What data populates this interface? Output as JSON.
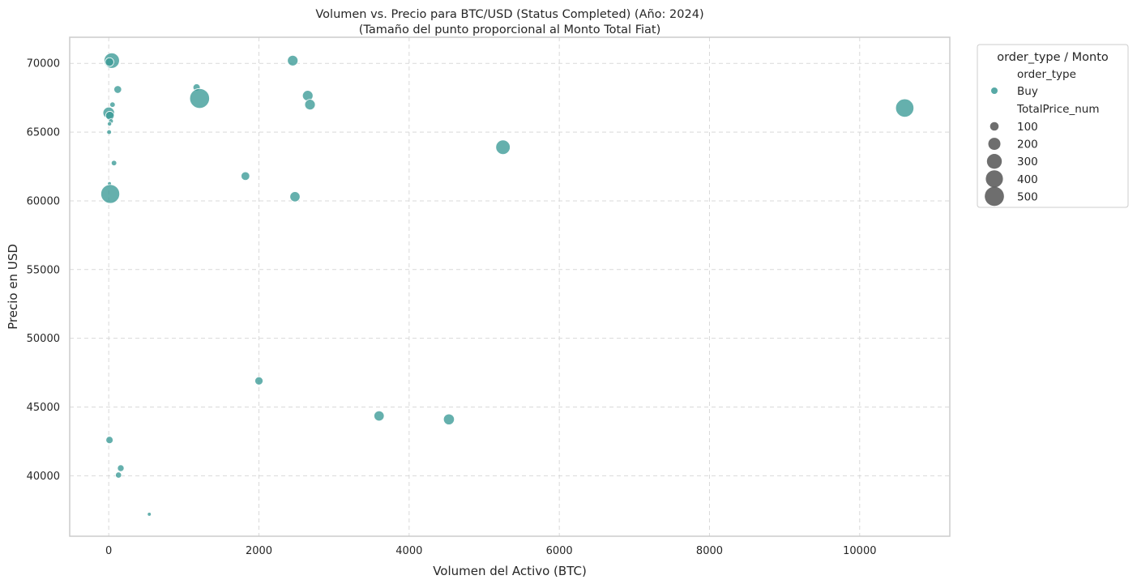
{
  "chart_data": {
    "type": "scatter",
    "title": "Volumen vs. Precio para BTC/USD (Status Completed) (Año: 2024)",
    "subtitle": "(Tamaño del punto proporcional al Monto Total Fiat)",
    "xlabel": "Volumen del Activo (BTC)",
    "ylabel": "Precio en USD",
    "xlim": [
      -520,
      11200
    ],
    "ylim": [
      35600,
      71900
    ],
    "xticks": [
      0,
      2000,
      4000,
      6000,
      8000,
      10000
    ],
    "yticks": [
      40000,
      45000,
      50000,
      55000,
      60000,
      65000,
      70000
    ],
    "grid": true,
    "legend": {
      "placement": "outside-top-right",
      "title": "order_type / Monto",
      "hue_title": "order_type",
      "hue_entries": [
        {
          "label": "Buy",
          "color": "#3a9a96"
        }
      ],
      "size_title": "TotalPrice_num",
      "size_entries": [
        100,
        200,
        300,
        400,
        500
      ]
    },
    "series": [
      {
        "color": "#3a9a96",
        "points": [
          {
            "x": 40,
            "y": 70200,
            "size": 320
          },
          {
            "x": 10,
            "y": 70100,
            "size": 100
          },
          {
            "x": 2450,
            "y": 70200,
            "size": 150
          },
          {
            "x": 120,
            "y": 68100,
            "size": 80
          },
          {
            "x": 1170,
            "y": 68250,
            "size": 70
          },
          {
            "x": 1210,
            "y": 67450,
            "size": 530
          },
          {
            "x": 2650,
            "y": 67650,
            "size": 150
          },
          {
            "x": 2680,
            "y": 67000,
            "size": 150
          },
          {
            "x": 10600,
            "y": 66750,
            "size": 450
          },
          {
            "x": 50,
            "y": 67000,
            "size": 40
          },
          {
            "x": 0,
            "y": 66400,
            "size": 180
          },
          {
            "x": 15,
            "y": 66200,
            "size": 100
          },
          {
            "x": 30,
            "y": 65800,
            "size": 30
          },
          {
            "x": 10,
            "y": 65600,
            "size": 25
          },
          {
            "x": 5,
            "y": 65000,
            "size": 30
          },
          {
            "x": 5250,
            "y": 63900,
            "size": 280
          },
          {
            "x": 70,
            "y": 62750,
            "size": 40
          },
          {
            "x": 1820,
            "y": 61800,
            "size": 100
          },
          {
            "x": 10,
            "y": 61250,
            "size": 20
          },
          {
            "x": 20,
            "y": 60500,
            "size": 480
          },
          {
            "x": 2480,
            "y": 60300,
            "size": 140
          },
          {
            "x": 2000,
            "y": 46900,
            "size": 90
          },
          {
            "x": 3600,
            "y": 44350,
            "size": 140
          },
          {
            "x": 4530,
            "y": 44100,
            "size": 160
          },
          {
            "x": 10,
            "y": 42600,
            "size": 70
          },
          {
            "x": 160,
            "y": 40550,
            "size": 60
          },
          {
            "x": 130,
            "y": 40050,
            "size": 50
          },
          {
            "x": 540,
            "y": 37200,
            "size": 20
          }
        ]
      }
    ]
  }
}
